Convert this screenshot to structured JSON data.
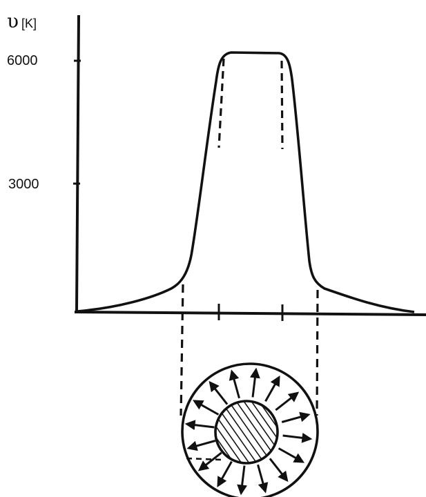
{
  "diagram": {
    "axis_label": {
      "symbol": "υ",
      "unit": "[K]"
    },
    "y_ticks": [
      {
        "label": "6000",
        "value": 6000
      },
      {
        "label": "3000",
        "value": 3000
      }
    ],
    "colors": {
      "ink": "#111111",
      "background": "#ffffff"
    }
  }
}
